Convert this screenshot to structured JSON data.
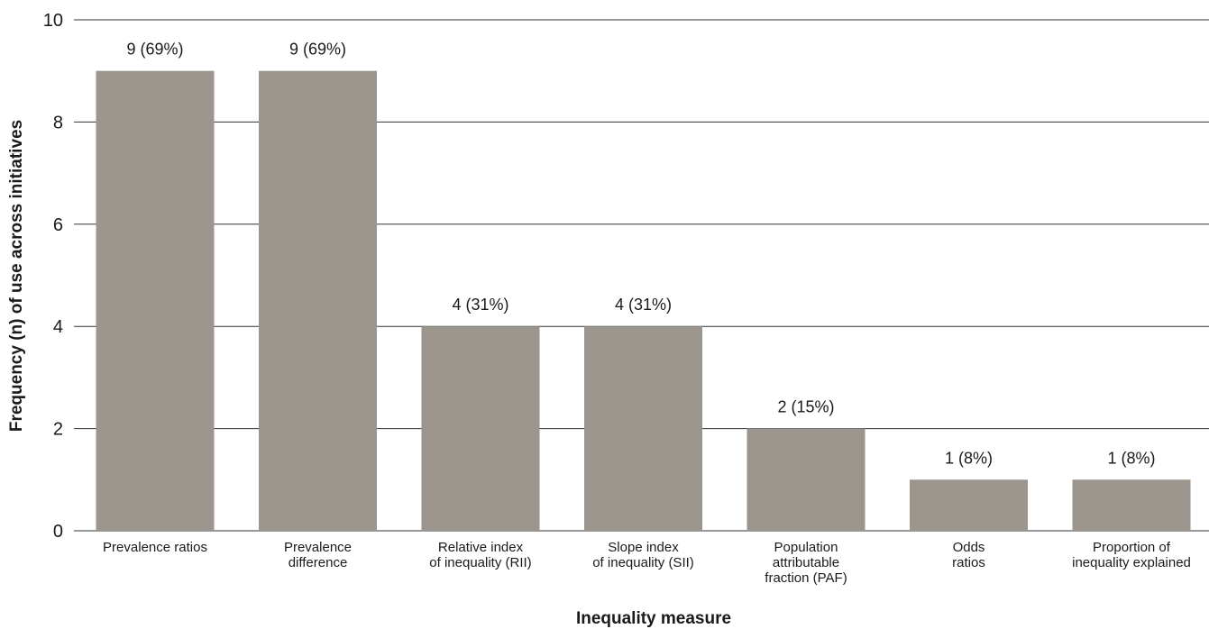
{
  "chart_data": {
    "type": "bar",
    "categories": [
      [
        "Prevalence ratios"
      ],
      [
        "Prevalence",
        "difference"
      ],
      [
        "Relative index",
        "of inequality (RII)"
      ],
      [
        "Slope index",
        "of inequality (SII)"
      ],
      [
        "Population",
        "attributable",
        "fraction (PAF)"
      ],
      [
        "Odds",
        "ratios"
      ],
      [
        "Proportion of",
        "inequality explained"
      ]
    ],
    "values": [
      9,
      9,
      4,
      4,
      2,
      1,
      1
    ],
    "data_labels": [
      "9 (69%)",
      "9 (69%)",
      "4 (31%)",
      "4 (31%)",
      "2 (15%)",
      "1 (8%)",
      "1 (8%)"
    ],
    "xlabel": "Inequality measure",
    "ylabel": "Frequency (n) of use across initiatives",
    "ylim": [
      0,
      10
    ],
    "yticks": [
      0,
      2,
      4,
      6,
      8,
      10
    ],
    "grid": true,
    "legend": "none",
    "colors": {
      "bar": "#9b958e",
      "grid": "#333333",
      "text": "#1a1a1a"
    }
  }
}
